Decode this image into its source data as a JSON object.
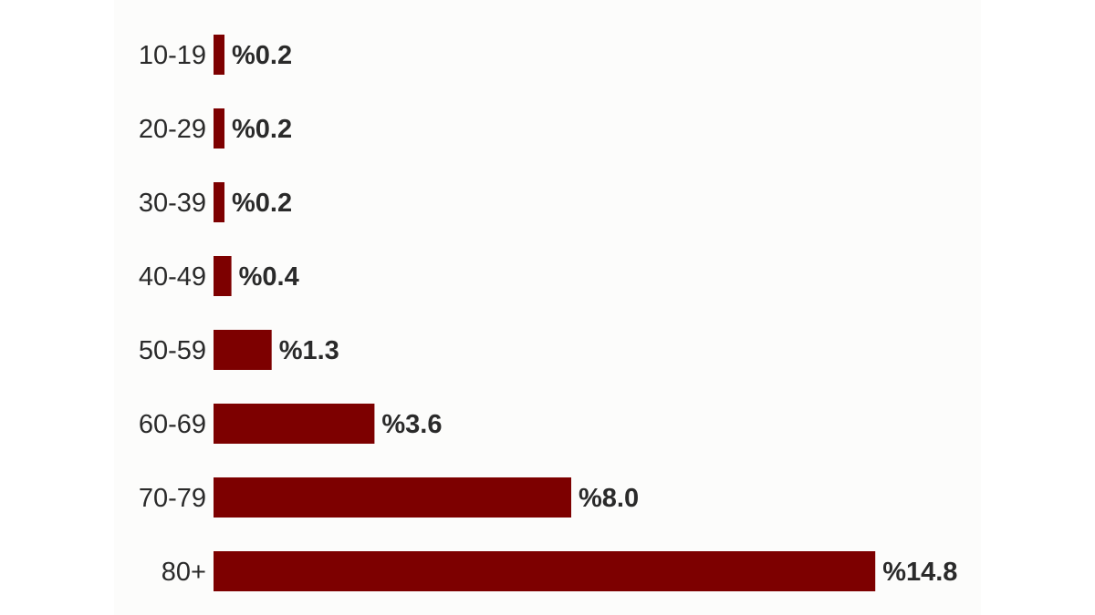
{
  "colors": {
    "bar": "#7d0000",
    "text": "#2a2a2a",
    "background": "#fcfcfb"
  },
  "chart_data": {
    "type": "bar",
    "orientation": "horizontal",
    "title": "",
    "xlabel": "",
    "ylabel": "",
    "grid": false,
    "legend": "none",
    "xlim": [
      0,
      15
    ],
    "categories": [
      "10-19",
      "20-29",
      "30-39",
      "40-49",
      "50-59",
      "60-69",
      "70-79",
      "80+"
    ],
    "values": [
      0.2,
      0.2,
      0.2,
      0.4,
      1.3,
      3.6,
      8.0,
      14.8
    ],
    "value_labels": [
      "%0.2",
      "%0.2",
      "%0.2",
      "%0.4",
      "%1.3",
      "%3.6",
      "%8.0",
      "%14.8"
    ]
  }
}
